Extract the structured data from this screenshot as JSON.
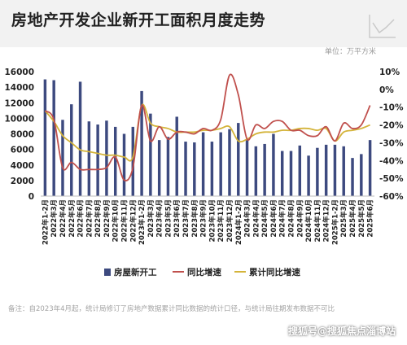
{
  "title": "房地产开发企业新开工面积月度走势",
  "unit_label": "单位：",
  "unit_value": "万平方米",
  "note": "备注：自2023年4月起，统计局修订了房地产数据累计同比数据的统计口径，与统计局往期发布数据不可比",
  "watermark": "搜狐号@搜狐焦点淄博站",
  "colors": {
    "bar": "#3d4a7f",
    "yoy_line": "#c0504d",
    "cum_line": "#d4b43a",
    "axis_text": "#222222",
    "header_bg": "#f2f2f2"
  },
  "chart_data": {
    "type": "bar+line",
    "categories": [
      "2022年1-2月",
      "2022年3月",
      "2022年4月",
      "2022年5月",
      "2022年6月",
      "2022年7月",
      "2022年8月",
      "2022年9月",
      "2022年10月",
      "2022年11月",
      "2022年12月",
      "2023年1-2月",
      "2023年3月",
      "2023年4月",
      "2023年5月",
      "2023年6月",
      "2023年7月",
      "2023年8月",
      "2023年9月",
      "2023年10月",
      "2023年11月",
      "2023年12月",
      "2024年1-2月",
      "2024年3月",
      "2024年4月",
      "2024年5月",
      "2024年6月",
      "2024年7月",
      "2024年8月",
      "2024年9月",
      "2024年10月",
      "2024年11月",
      "2024年12月",
      "2025年1-2月",
      "2025年3月",
      "2025年4月",
      "2025年5月",
      "2025年6月"
    ],
    "y_left": {
      "min": 0,
      "max": 16000,
      "ticks": [
        0,
        2000,
        4000,
        6000,
        8000,
        10000,
        12000,
        14000,
        16000
      ]
    },
    "y_right": {
      "min": -60,
      "max": 10,
      "ticks": [
        10,
        0,
        -10,
        -20,
        -30,
        -40,
        -50,
        -60
      ],
      "format": "percent"
    },
    "series": [
      {
        "name": "房屋新开工",
        "kind": "bar",
        "axis": "left",
        "values": [
          15000,
          14900,
          9800,
          11800,
          14700,
          9600,
          9200,
          9700,
          8900,
          8000,
          8900,
          13500,
          10600,
          7200,
          7600,
          10200,
          7000,
          6900,
          8200,
          7000,
          8200,
          8600,
          9400,
          7200,
          6400,
          6700,
          8000,
          5800,
          5800,
          6500,
          5200,
          6200,
          6600,
          6600,
          6400,
          4900,
          5400,
          7200
        ]
      },
      {
        "name": "同比增速",
        "kind": "line",
        "axis": "right",
        "values": [
          -12,
          -17,
          -44,
          -41,
          -45,
          -45,
          -45,
          -44,
          -38,
          -51,
          -44,
          -9,
          -29,
          -21,
          -28,
          -24,
          -24,
          -25,
          -22,
          -23,
          -17,
          8,
          -3,
          -28,
          -20,
          -22,
          -18,
          -18,
          -23,
          -23,
          -26,
          -26,
          -21,
          -29,
          -19,
          -22,
          -20,
          -9
        ]
      },
      {
        "name": "累计同比增速",
        "kind": "line",
        "axis": "right",
        "values": [
          -12,
          -18,
          -26,
          -30,
          -34,
          -35,
          -36,
          -37,
          -37,
          -38,
          -38,
          -9,
          -19,
          -21,
          -22,
          -24,
          -24,
          -24,
          -23,
          -23,
          -22,
          -21,
          -29,
          -28,
          -25,
          -24,
          -24,
          -23,
          -23,
          -22,
          -22,
          -23,
          -22,
          -29,
          -24,
          -23,
          -22,
          -20
        ]
      }
    ]
  }
}
